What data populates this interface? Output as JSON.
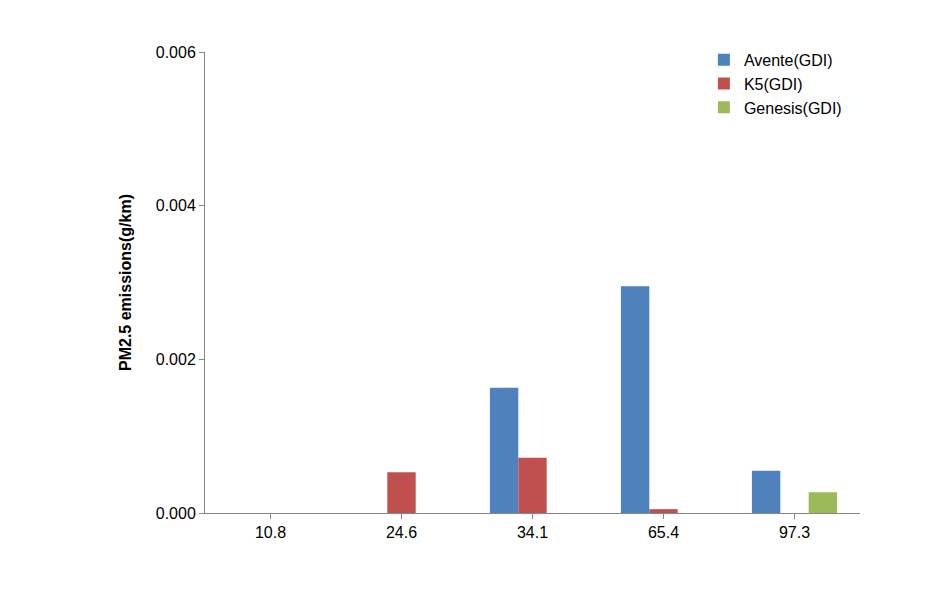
{
  "chart_data": {
    "type": "bar",
    "y_label": "PM2.5 emissions(g/km)",
    "categories": [
      "10.8",
      "24.6",
      "34.1",
      "65.4",
      "97.3"
    ],
    "series": [
      {
        "name": "Avente(GDI)",
        "color": "#4f81bd",
        "values": [
          0,
          0,
          0.00163,
          0.00295,
          0.00055
        ]
      },
      {
        "name": "K5(GDI)",
        "color": "#c0504d",
        "values": [
          0,
          0.00053,
          0.00072,
          5e-05,
          0
        ]
      },
      {
        "name": "Genesis(GDI)",
        "color": "#9bbb59",
        "values": [
          0,
          0,
          0,
          0,
          0.00027
        ]
      }
    ],
    "ylim": [
      0,
      0.006
    ],
    "yticks": [
      {
        "value": 0,
        "label": "0.000"
      },
      {
        "value": 0.002,
        "label": "0.002"
      },
      {
        "value": 0.004,
        "label": "0.004"
      },
      {
        "value": 0.006,
        "label": "0.006"
      }
    ],
    "grid": false,
    "legend": "top-right"
  }
}
